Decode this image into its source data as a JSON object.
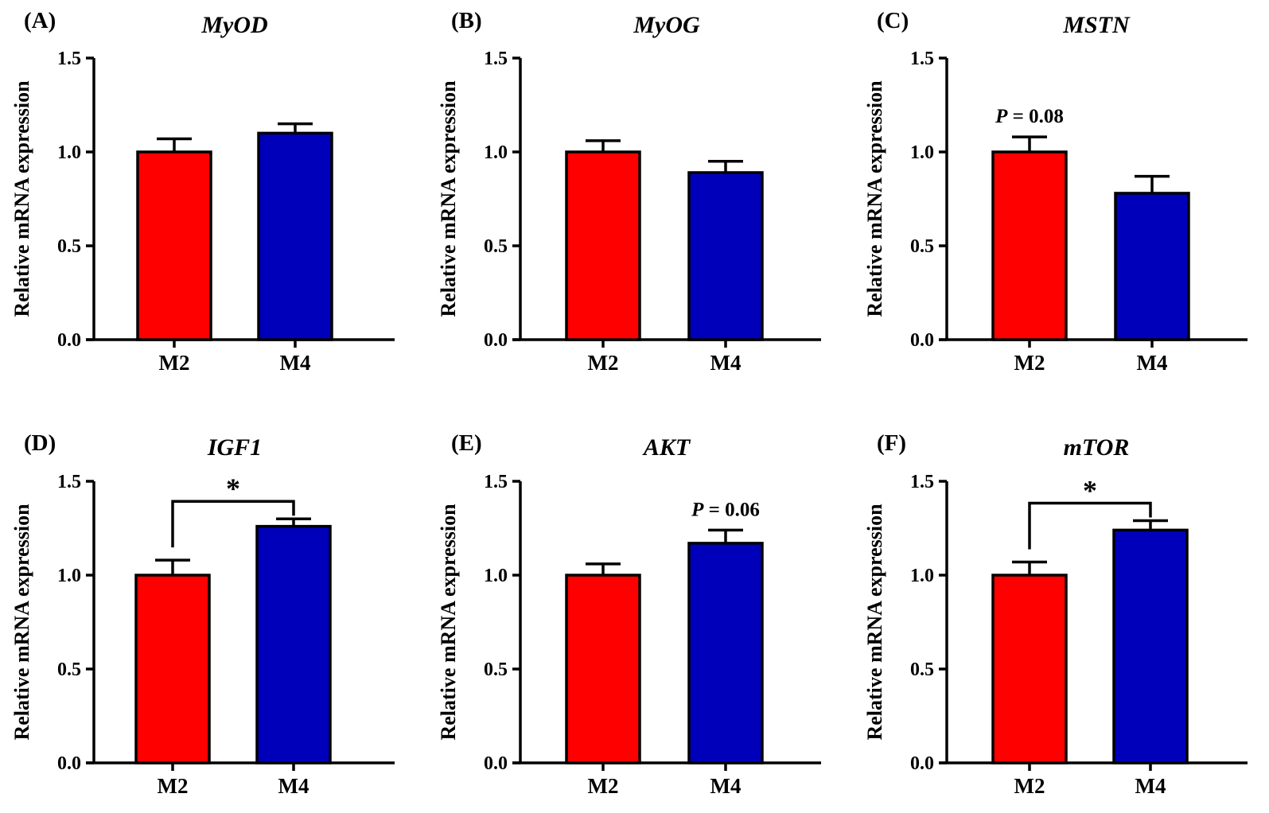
{
  "figure": {
    "colors": {
      "M2": "#ff0000",
      "M4": "#0000bb"
    },
    "chart_data": [
      {
        "panel": "(A)",
        "type": "bar",
        "title": "MyOD",
        "ylabel": "Relative mRNA expression",
        "categories": [
          "M2",
          "M4"
        ],
        "values": [
          1.0,
          1.1
        ],
        "errors": [
          0.07,
          0.05
        ],
        "ylim": [
          0,
          1.5
        ],
        "yticks": [
          "0.0",
          "0.5",
          "1.0",
          "1.5"
        ],
        "annotation": null
      },
      {
        "panel": "(B)",
        "type": "bar",
        "title": "MyOG",
        "ylabel": "Relative mRNA expression",
        "categories": [
          "M2",
          "M4"
        ],
        "values": [
          1.0,
          0.89
        ],
        "errors": [
          0.06,
          0.06
        ],
        "ylim": [
          0,
          1.5
        ],
        "yticks": [
          "0.0",
          "0.5",
          "1.0",
          "1.5"
        ],
        "annotation": null
      },
      {
        "panel": "(C)",
        "type": "bar",
        "title": "MSTN",
        "ylabel": "Relative mRNA expression",
        "categories": [
          "M2",
          "M4"
        ],
        "values": [
          1.0,
          0.78
        ],
        "errors": [
          0.08,
          0.09
        ],
        "ylim": [
          0,
          1.5
        ],
        "yticks": [
          "0.0",
          "0.5",
          "1.0",
          "1.5"
        ],
        "annotation": {
          "kind": "text",
          "p_label": "P",
          "p_value": " = 0.08",
          "over": 0
        }
      },
      {
        "panel": "(D)",
        "type": "bar",
        "title": "IGF1",
        "ylabel": "Relative mRNA expression",
        "categories": [
          "M2",
          "M4"
        ],
        "values": [
          1.0,
          1.26
        ],
        "errors": [
          0.08,
          0.04
        ],
        "ylim": [
          0,
          1.5
        ],
        "yticks": [
          "0.0",
          "0.5",
          "1.0",
          "1.5"
        ],
        "annotation": {
          "kind": "bracket",
          "label": "*"
        }
      },
      {
        "panel": "(E)",
        "type": "bar",
        "title": "AKT",
        "ylabel": "Relative mRNA expression",
        "categories": [
          "M2",
          "M4"
        ],
        "values": [
          1.0,
          1.17
        ],
        "errors": [
          0.06,
          0.07
        ],
        "ylim": [
          0,
          1.5
        ],
        "yticks": [
          "0.0",
          "0.5",
          "1.0",
          "1.5"
        ],
        "annotation": {
          "kind": "text",
          "p_label": "P",
          "p_value": " = 0.06",
          "over": 1
        }
      },
      {
        "panel": "(F)",
        "type": "bar",
        "title": "mTOR",
        "ylabel": "Relative mRNA expression",
        "categories": [
          "M2",
          "M4"
        ],
        "values": [
          1.0,
          1.24
        ],
        "errors": [
          0.07,
          0.05
        ],
        "ylim": [
          0,
          1.5
        ],
        "yticks": [
          "0.0",
          "0.5",
          "1.0",
          "1.5"
        ],
        "annotation": {
          "kind": "bracket",
          "label": "*"
        }
      }
    ]
  }
}
